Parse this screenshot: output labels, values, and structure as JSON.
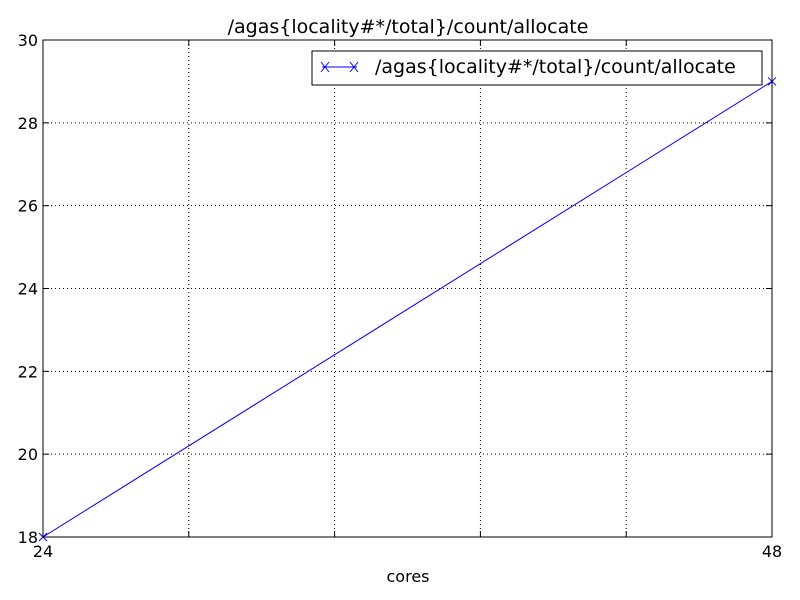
{
  "chart_data": {
    "type": "line",
    "title": "/agas{locality#*/total}/count/allocate",
    "xlabel": "cores",
    "ylabel": "",
    "xlim": [
      24,
      48
    ],
    "ylim": [
      18,
      30
    ],
    "x_ticks_labeled": [
      {
        "value": 24,
        "label": "24"
      },
      {
        "value": 48,
        "label": "48"
      }
    ],
    "x_gridlines": [
      28.8,
      33.6,
      38.4,
      43.2
    ],
    "y_ticks": [
      {
        "value": 18,
        "label": "18"
      },
      {
        "value": 20,
        "label": "20"
      },
      {
        "value": 22,
        "label": "22"
      },
      {
        "value": 24,
        "label": "24"
      },
      {
        "value": 26,
        "label": "26"
      },
      {
        "value": 28,
        "label": "28"
      },
      {
        "value": 30,
        "label": "30"
      }
    ],
    "grid": true,
    "legend": {
      "placement": "top-right"
    },
    "series": [
      {
        "name": "/agas{locality#*/total}/count/allocate",
        "color": "#0000ff",
        "marker": "x",
        "x": [
          24,
          48
        ],
        "y": [
          18,
          29
        ]
      }
    ]
  }
}
